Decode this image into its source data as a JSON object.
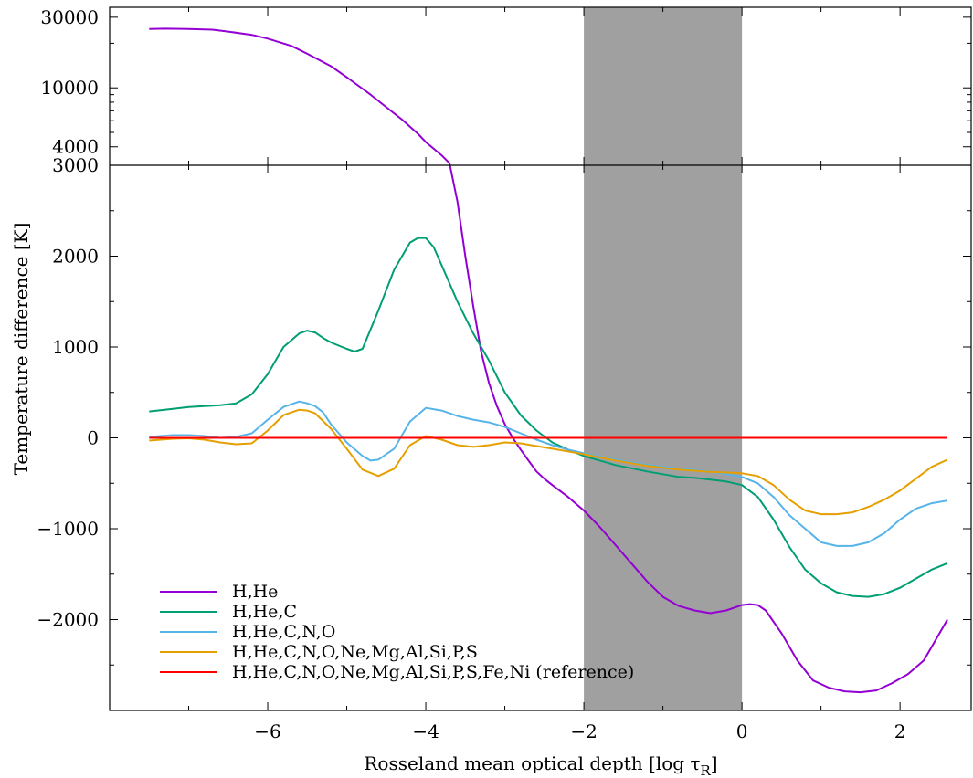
{
  "chart_data": {
    "type": "line",
    "title": "",
    "xlabel": "Rosseland mean optical depth [log τ",
    "xlabel_sub": "R",
    "xlabel_close": "]",
    "ylabel": "Temperature difference [K]",
    "xlim": [
      -8.0,
      2.9
    ],
    "upper_panel": {
      "scale": "log",
      "ylim": [
        3000,
        35000
      ],
      "yticks": [
        4000,
        10000,
        30000
      ],
      "ytick_labels": [
        "4000",
        "10000",
        "30000"
      ]
    },
    "lower_panel": {
      "scale": "linear",
      "ylim": [
        -3000,
        3000
      ],
      "yticks": [
        -2000,
        -1000,
        0,
        1000,
        2000,
        3000
      ],
      "ytick_labels": [
        "−2000",
        "−1000",
        "0",
        "1000",
        "2000",
        "3000"
      ]
    },
    "xticks": [
      -6,
      -4,
      -2,
      0,
      2
    ],
    "xtick_labels": [
      "−6",
      "−4",
      "−2",
      "0",
      "2"
    ],
    "shaded_region": {
      "x": [
        -2,
        0
      ],
      "color": "#a0a0a0"
    },
    "legend_position": "lower-left",
    "series": [
      {
        "name": "H,He",
        "color": "#9400d3",
        "x": [
          -7.5,
          -7.3,
          -7.0,
          -6.7,
          -6.5,
          -6.2,
          -6.0,
          -5.7,
          -5.5,
          -5.2,
          -5.0,
          -4.7,
          -4.5,
          -4.3,
          -4.1,
          -4.0,
          -3.8,
          -3.7,
          -3.6,
          -3.55,
          -3.5,
          -3.4,
          -3.3,
          -3.2,
          -3.1,
          -3.0,
          -2.9,
          -2.8,
          -2.7,
          -2.6,
          -2.5,
          -2.4,
          -2.2,
          -2.0,
          -1.8,
          -1.6,
          -1.4,
          -1.2,
          -1.0,
          -0.8,
          -0.6,
          -0.4,
          -0.2,
          0.0,
          0.1,
          0.2,
          0.3,
          0.5,
          0.7,
          0.9,
          1.1,
          1.3,
          1.5,
          1.7,
          1.9,
          2.1,
          2.3,
          2.6
        ],
        "y": [
          25000,
          25100,
          25000,
          24700,
          24000,
          22800,
          21500,
          19200,
          17000,
          14000,
          11800,
          9000,
          7400,
          6100,
          4900,
          4300,
          3500,
          3100,
          2600,
          2300,
          2000,
          1450,
          950,
          600,
          350,
          150,
          0,
          -130,
          -250,
          -370,
          -450,
          -520,
          -650,
          -800,
          -980,
          -1180,
          -1380,
          -1580,
          -1750,
          -1850,
          -1900,
          -1930,
          -1900,
          -1840,
          -1830,
          -1840,
          -1900,
          -2150,
          -2450,
          -2670,
          -2750,
          -2790,
          -2800,
          -2780,
          -2700,
          -2600,
          -2450,
          -2000
        ]
      },
      {
        "name": "H,He,C",
        "color": "#009e73",
        "x": [
          -7.5,
          -7.2,
          -7.0,
          -6.8,
          -6.6,
          -6.4,
          -6.2,
          -6.0,
          -5.8,
          -5.6,
          -5.5,
          -5.4,
          -5.3,
          -5.2,
          -5.0,
          -4.9,
          -4.8,
          -4.6,
          -4.4,
          -4.2,
          -4.1,
          -4.0,
          -3.9,
          -3.8,
          -3.6,
          -3.4,
          -3.2,
          -3.0,
          -2.8,
          -2.6,
          -2.4,
          -2.2,
          -2.0,
          -1.6,
          -1.2,
          -0.8,
          -0.6,
          -0.4,
          -0.2,
          0.0,
          0.2,
          0.4,
          0.6,
          0.8,
          1.0,
          1.2,
          1.4,
          1.6,
          1.8,
          2.0,
          2.2,
          2.4,
          2.6
        ],
        "y": [
          290,
          320,
          340,
          350,
          360,
          380,
          480,
          700,
          1000,
          1150,
          1180,
          1160,
          1100,
          1050,
          980,
          950,
          980,
          1400,
          1850,
          2150,
          2200,
          2200,
          2100,
          1900,
          1500,
          1150,
          850,
          500,
          250,
          80,
          -50,
          -130,
          -200,
          -300,
          -370,
          -430,
          -440,
          -460,
          -480,
          -520,
          -650,
          -900,
          -1200,
          -1450,
          -1600,
          -1700,
          -1740,
          -1750,
          -1720,
          -1650,
          -1550,
          -1450,
          -1380
        ]
      },
      {
        "name": "H,He,C,N,O",
        "color": "#56b4e9",
        "x": [
          -7.5,
          -7.2,
          -7.0,
          -6.8,
          -6.6,
          -6.4,
          -6.2,
          -6.0,
          -5.8,
          -5.6,
          -5.5,
          -5.4,
          -5.3,
          -5.2,
          -5.0,
          -4.8,
          -4.7,
          -4.6,
          -4.4,
          -4.2,
          -4.0,
          -3.8,
          -3.6,
          -3.4,
          -3.2,
          -3.0,
          -2.8,
          -2.6,
          -2.4,
          -2.2,
          -2.0,
          -1.6,
          -1.2,
          -0.8,
          -0.4,
          0.0,
          0.2,
          0.4,
          0.6,
          0.8,
          1.0,
          1.2,
          1.4,
          1.6,
          1.8,
          2.0,
          2.2,
          2.4,
          2.6
        ],
        "y": [
          10,
          30,
          30,
          20,
          0,
          10,
          50,
          200,
          340,
          400,
          380,
          350,
          280,
          150,
          -50,
          -200,
          -250,
          -240,
          -120,
          180,
          330,
          300,
          240,
          200,
          170,
          120,
          50,
          -20,
          -80,
          -130,
          -170,
          -240,
          -300,
          -340,
          -370,
          -430,
          -500,
          -650,
          -850,
          -1000,
          -1150,
          -1190,
          -1190,
          -1150,
          -1050,
          -900,
          -780,
          -720,
          -690
        ]
      },
      {
        "name": "H,He,C,N,O,Ne,Mg,Al,Si,P,S",
        "color": "#e69f00",
        "x": [
          -7.5,
          -7.2,
          -7.0,
          -6.8,
          -6.6,
          -6.4,
          -6.2,
          -6.0,
          -5.8,
          -5.6,
          -5.5,
          -5.4,
          -5.2,
          -5.0,
          -4.8,
          -4.6,
          -4.4,
          -4.2,
          -4.0,
          -3.8,
          -3.6,
          -3.4,
          -3.2,
          -3.0,
          -2.8,
          -2.6,
          -2.4,
          -2.2,
          -2.0,
          -1.6,
          -1.2,
          -0.8,
          -0.4,
          0.0,
          0.2,
          0.4,
          0.6,
          0.8,
          1.0,
          1.2,
          1.4,
          1.6,
          1.8,
          2.0,
          2.2,
          2.4,
          2.6
        ],
        "y": [
          -30,
          -10,
          -5,
          -20,
          -50,
          -70,
          -60,
          80,
          250,
          310,
          300,
          270,
          100,
          -120,
          -350,
          -420,
          -340,
          -80,
          20,
          -20,
          -80,
          -100,
          -80,
          -50,
          -60,
          -90,
          -120,
          -150,
          -180,
          -250,
          -310,
          -350,
          -375,
          -390,
          -420,
          -520,
          -680,
          -800,
          -840,
          -840,
          -820,
          -760,
          -680,
          -580,
          -450,
          -320,
          -240
        ]
      },
      {
        "name": "H,He,C,N,O,Ne,Mg,Al,Si,P,S,Fe,Ni (reference)",
        "color": "#ff0000",
        "x": [
          -7.5,
          2.6
        ],
        "y": [
          0,
          0
        ]
      }
    ]
  }
}
